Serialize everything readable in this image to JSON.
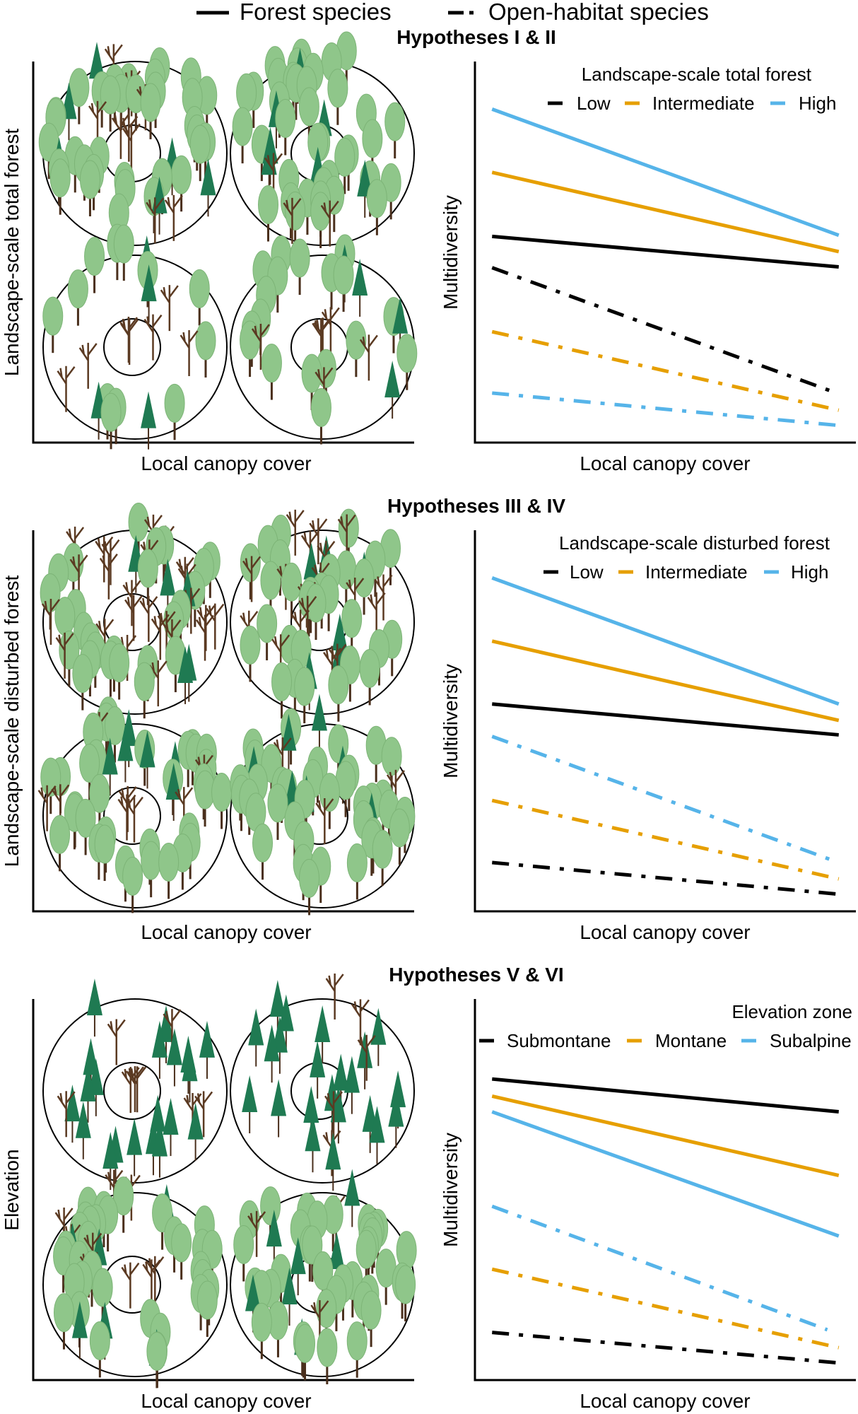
{
  "legend": {
    "forest": "Forest species",
    "open": "Open-habitat species"
  },
  "colors": {
    "low": "#000000",
    "intermediate": "#E69F00",
    "high": "#56B4E9"
  },
  "panels": [
    {
      "title": "Hypotheses I & II",
      "illustration_ylabel": "Landscape-scale total forest",
      "illustration_xlabel": "Local canopy cover"
    },
    {
      "title": "Hypotheses III & IV",
      "illustration_ylabel": "Landscape-scale disturbed forest",
      "illustration_xlabel": "Local canopy cover"
    },
    {
      "title": "Hypotheses V & VI",
      "illustration_ylabel": "Elevation",
      "illustration_xlabel": "Local canopy cover"
    }
  ],
  "chart_data": [
    {
      "type": "line",
      "legend_title": "Landscape-scale total forest",
      "legend_labels": [
        "Low",
        "Intermediate",
        "High"
      ],
      "xlabel": "Local canopy cover",
      "ylabel": "Multidiversity",
      "xlim": [
        0,
        1
      ],
      "ylim": [
        0,
        100
      ],
      "series": [
        {
          "name": "High (forest)",
          "color": "#56B4E9",
          "style": "solid",
          "x": [
            0.045,
            0.955
          ],
          "y": [
            87.5,
            54.4
          ]
        },
        {
          "name": "Intermediate (forest)",
          "color": "#E69F00",
          "style": "solid",
          "x": [
            0.045,
            0.955
          ],
          "y": [
            70.9,
            50.1
          ]
        },
        {
          "name": "Low (forest)",
          "color": "#000000",
          "style": "solid",
          "x": [
            0.045,
            0.955
          ],
          "y": [
            54.1,
            46.1
          ]
        },
        {
          "name": "Low (open-habitat)",
          "color": "#000000",
          "style": "dashdot",
          "x": [
            0.045,
            0.93
          ],
          "y": [
            45.9,
            13.7
          ]
        },
        {
          "name": "Intermediate (open-habitat)",
          "color": "#E69F00",
          "style": "dashdot",
          "x": [
            0.045,
            0.955
          ],
          "y": [
            29.1,
            8.5
          ]
        },
        {
          "name": "High (open-habitat)",
          "color": "#56B4E9",
          "style": "dashdot",
          "x": [
            0.045,
            0.955
          ],
          "y": [
            13.0,
            4.5
          ]
        }
      ]
    },
    {
      "type": "line",
      "legend_title": "Landscape-scale disturbed forest",
      "legend_labels": [
        "Low",
        "Intermediate",
        "High"
      ],
      "xlabel": "Local canopy cover",
      "ylabel": "Multidiversity",
      "xlim": [
        0,
        1
      ],
      "ylim": [
        0,
        100
      ],
      "series": [
        {
          "name": "High (forest)",
          "color": "#56B4E9",
          "style": "solid",
          "x": [
            0.045,
            0.955
          ],
          "y": [
            87.5,
            54.4
          ]
        },
        {
          "name": "Intermediate (forest)",
          "color": "#E69F00",
          "style": "solid",
          "x": [
            0.045,
            0.955
          ],
          "y": [
            70.9,
            50.1
          ]
        },
        {
          "name": "Low (forest)",
          "color": "#000000",
          "style": "solid",
          "x": [
            0.045,
            0.955
          ],
          "y": [
            54.4,
            46.3
          ]
        },
        {
          "name": "High (open-habitat)",
          "color": "#56B4E9",
          "style": "dashdot",
          "x": [
            0.045,
            0.93
          ],
          "y": [
            45.9,
            13.7
          ]
        },
        {
          "name": "Intermediate (open-habitat)",
          "color": "#E69F00",
          "style": "dashdot",
          "x": [
            0.045,
            0.955
          ],
          "y": [
            29.1,
            8.5
          ]
        },
        {
          "name": "Low (open-habitat)",
          "color": "#000000",
          "style": "dashdot",
          "x": [
            0.045,
            0.955
          ],
          "y": [
            12.8,
            4.5
          ]
        }
      ]
    },
    {
      "type": "line",
      "legend_title": "Elevation zone",
      "legend_labels": [
        "Submontane",
        "Montane",
        "Subalpine"
      ],
      "xlabel": "Local canopy cover",
      "ylabel": "Multidiversity",
      "xlim": [
        0,
        1
      ],
      "ylim": [
        0,
        100
      ],
      "series": [
        {
          "name": "Submontane (forest)",
          "color": "#000000",
          "style": "solid",
          "x": [
            0.045,
            0.955
          ],
          "y": [
            79.0,
            70.4
          ]
        },
        {
          "name": "Montane (forest)",
          "color": "#E69F00",
          "style": "solid",
          "x": [
            0.045,
            0.955
          ],
          "y": [
            74.5,
            53.7
          ]
        },
        {
          "name": "Subalpine (forest)",
          "color": "#56B4E9",
          "style": "solid",
          "x": [
            0.045,
            0.955
          ],
          "y": [
            70.4,
            37.8
          ]
        },
        {
          "name": "Subalpine (open-habitat)",
          "color": "#56B4E9",
          "style": "dashdot",
          "x": [
            0.045,
            0.925
          ],
          "y": [
            45.6,
            13.2
          ]
        },
        {
          "name": "Montane (open-habitat)",
          "color": "#E69F00",
          "style": "dashdot",
          "x": [
            0.045,
            0.955
          ],
          "y": [
            29.1,
            8.5
          ]
        },
        {
          "name": "Submontane (open-habitat)",
          "color": "#000000",
          "style": "dashdot",
          "x": [
            0.045,
            0.955
          ],
          "y": [
            12.5,
            4.5
          ]
        }
      ]
    }
  ]
}
